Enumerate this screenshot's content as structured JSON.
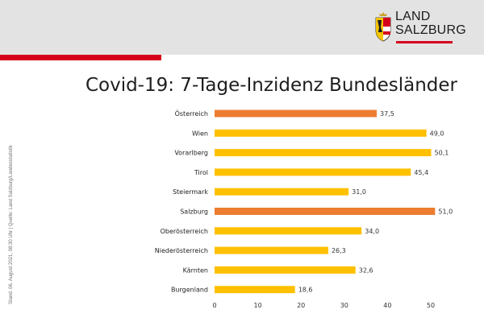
{
  "header": {
    "logo": {
      "line1": "LAND",
      "line2": "SALZBURG"
    }
  },
  "side_note": "Stand: 06. August  2021, 08:30 Uhr  |  Quelle: Land Salzburg/Landesstatistik",
  "colors": {
    "header_bg": "#e3e3e3",
    "accent_red": "#d6001c",
    "bar_default": "#ffc000",
    "bar_highlight": "#ed7d31"
  },
  "chart_data": {
    "type": "bar",
    "orientation": "horizontal",
    "title": "Covid-19: 7-Tage-Inzidenz Bundesländer",
    "categories": [
      "Österreich",
      "Wien",
      "Vorarlberg",
      "Tirol",
      "Steiermark",
      "Salzburg",
      "Oberösterreich",
      "Niederösterreich",
      "Kärnten",
      "Burgenland"
    ],
    "values": [
      37.5,
      49.0,
      50.1,
      45.4,
      31.0,
      51.0,
      34.0,
      26.3,
      32.6,
      18.6
    ],
    "value_labels": [
      "37,5",
      "49,0",
      "50,1",
      "45,4",
      "31,0",
      "51,0",
      "34,0",
      "26,3",
      "32,6",
      "18,6"
    ],
    "highlight": [
      "Österreich",
      "Salzburg"
    ],
    "xlim": [
      0,
      55
    ],
    "xticks": [
      0,
      10,
      20,
      30,
      40,
      50
    ],
    "xlabel": "",
    "ylabel": "",
    "grid": false,
    "legend": "none"
  }
}
